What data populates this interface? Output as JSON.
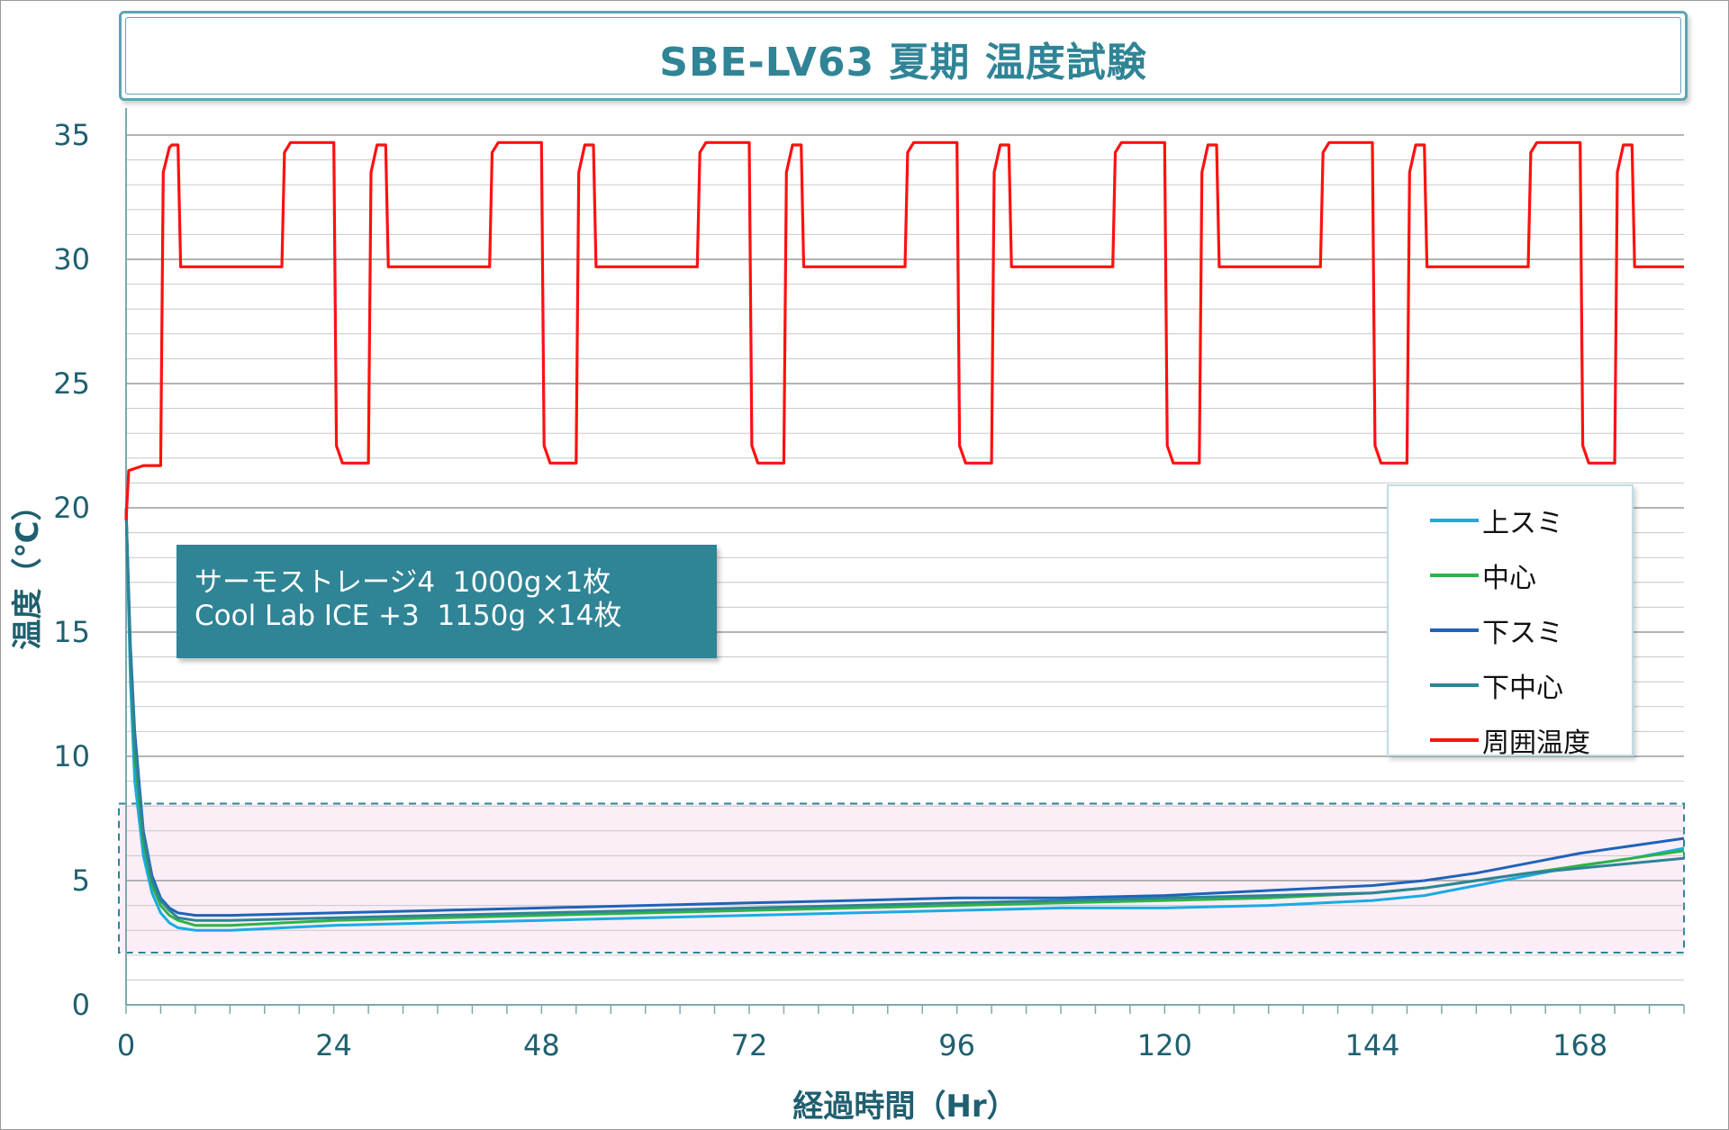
{
  "title": "SBE-LV63 夏期 温度試験",
  "note": {
    "line1": "サーモストレージ4  1000g×1枚",
    "line2": "Cool Lab ICE +3  1150g ×14枚"
  },
  "chart_data": {
    "type": "line",
    "title": "SBE-LV63 夏期 温度試験",
    "xlabel": "経過時間（Hr）",
    "ylabel": "温度（℃）",
    "xlim": [
      0,
      180
    ],
    "ylim": [
      0,
      35
    ],
    "xticks": [
      0,
      24,
      48,
      72,
      96,
      120,
      144,
      168
    ],
    "yticks": [
      0,
      5,
      10,
      15,
      20,
      25,
      30,
      35
    ],
    "grid": true,
    "legend_position": "right",
    "highlight_band": {
      "from": 2.1,
      "to": 8.1,
      "color": "#fbeef7"
    },
    "series": [
      {
        "name": "上スミ",
        "color": "#1aabe2",
        "x": [
          0,
          0.5,
          1,
          2,
          3,
          4,
          5,
          6,
          8,
          12,
          24,
          36,
          48,
          60,
          72,
          84,
          96,
          108,
          120,
          132,
          144,
          150,
          156,
          162,
          168,
          174,
          180
        ],
        "y": [
          20,
          13,
          9,
          6,
          4.5,
          3.7,
          3.3,
          3.1,
          3.0,
          3.0,
          3.2,
          3.3,
          3.4,
          3.5,
          3.6,
          3.7,
          3.8,
          3.9,
          3.9,
          4.0,
          4.2,
          4.4,
          4.8,
          5.2,
          5.6,
          5.9,
          6.3
        ]
      },
      {
        "name": "中心",
        "color": "#2eb346",
        "x": [
          0,
          0.5,
          1,
          2,
          3,
          4,
          5,
          6,
          8,
          12,
          24,
          36,
          48,
          60,
          72,
          84,
          96,
          108,
          120,
          132,
          144,
          150,
          156,
          162,
          168,
          174,
          180
        ],
        "y": [
          20,
          14,
          10,
          6.5,
          4.8,
          4.0,
          3.6,
          3.4,
          3.2,
          3.2,
          3.4,
          3.5,
          3.6,
          3.7,
          3.8,
          3.9,
          4.0,
          4.1,
          4.2,
          4.3,
          4.5,
          4.7,
          5.0,
          5.3,
          5.6,
          5.9,
          6.2
        ]
      },
      {
        "name": "下スミ",
        "color": "#1f63b8",
        "x": [
          0,
          0.5,
          1,
          2,
          3,
          4,
          5,
          6,
          8,
          12,
          24,
          36,
          48,
          60,
          72,
          84,
          96,
          108,
          120,
          132,
          144,
          150,
          156,
          162,
          168,
          174,
          180
        ],
        "y": [
          20,
          14.5,
          11,
          7,
          5.2,
          4.3,
          3.9,
          3.7,
          3.6,
          3.6,
          3.7,
          3.8,
          3.9,
          4.0,
          4.1,
          4.2,
          4.3,
          4.3,
          4.4,
          4.6,
          4.8,
          5.0,
          5.3,
          5.7,
          6.1,
          6.4,
          6.7
        ]
      },
      {
        "name": "下中心",
        "color": "#2f8496",
        "x": [
          0,
          0.5,
          1,
          2,
          3,
          4,
          5,
          6,
          8,
          12,
          24,
          36,
          48,
          60,
          72,
          84,
          96,
          108,
          120,
          132,
          144,
          150,
          156,
          162,
          168,
          174,
          180
        ],
        "y": [
          20,
          14,
          10.5,
          6.8,
          5.0,
          4.2,
          3.8,
          3.5,
          3.4,
          3.4,
          3.5,
          3.6,
          3.7,
          3.8,
          3.9,
          4.0,
          4.1,
          4.2,
          4.3,
          4.4,
          4.5,
          4.7,
          5.0,
          5.3,
          5.5,
          5.7,
          5.9
        ]
      },
      {
        "name": "周囲温度",
        "color": "#ff1010",
        "x": [
          0,
          0.3,
          2,
          4,
          4.3,
          5,
          5.3,
          6,
          6.3,
          18,
          18.3,
          19,
          24,
          24.3,
          25,
          28,
          28.3,
          29,
          30,
          30.3,
          42,
          42.3,
          43,
          48,
          48.3,
          49,
          52,
          52.3,
          53,
          54,
          54.3,
          66,
          66.3,
          67,
          72,
          72.3,
          73,
          76,
          76.3,
          77,
          78,
          78.3,
          90,
          90.3,
          91,
          96,
          96.3,
          97,
          100,
          100.3,
          101,
          102,
          102.3,
          114,
          114.3,
          115,
          120,
          120.3,
          121,
          124,
          124.3,
          125,
          126,
          126.3,
          138,
          138.3,
          139,
          144,
          144.3,
          145,
          148,
          148.3,
          149,
          150,
          150.3,
          162,
          162.3,
          163,
          168,
          168.3,
          169,
          172,
          172.3,
          173,
          174,
          174.3,
          180
        ],
        "y": [
          19.5,
          21.5,
          21.7,
          21.7,
          33.5,
          34.5,
          34.6,
          34.6,
          29.7,
          29.7,
          34.3,
          34.7,
          34.7,
          22.5,
          21.8,
          21.8,
          33.5,
          34.6,
          34.6,
          29.7,
          29.7,
          34.3,
          34.7,
          34.7,
          22.5,
          21.8,
          21.8,
          33.5,
          34.6,
          34.6,
          29.7,
          29.7,
          34.3,
          34.7,
          34.7,
          22.5,
          21.8,
          21.8,
          33.5,
          34.6,
          34.6,
          29.7,
          29.7,
          34.3,
          34.7,
          34.7,
          22.5,
          21.8,
          21.8,
          33.5,
          34.6,
          34.6,
          29.7,
          29.7,
          34.3,
          34.7,
          34.7,
          22.5,
          21.8,
          21.8,
          33.5,
          34.6,
          34.6,
          29.7,
          29.7,
          34.3,
          34.7,
          34.7,
          22.5,
          21.8,
          21.8,
          33.5,
          34.6,
          34.6,
          29.7,
          29.7,
          34.3,
          34.7,
          34.7,
          22.5,
          21.8,
          21.8,
          33.5,
          34.6,
          34.6,
          29.7,
          29.7
        ]
      }
    ]
  }
}
